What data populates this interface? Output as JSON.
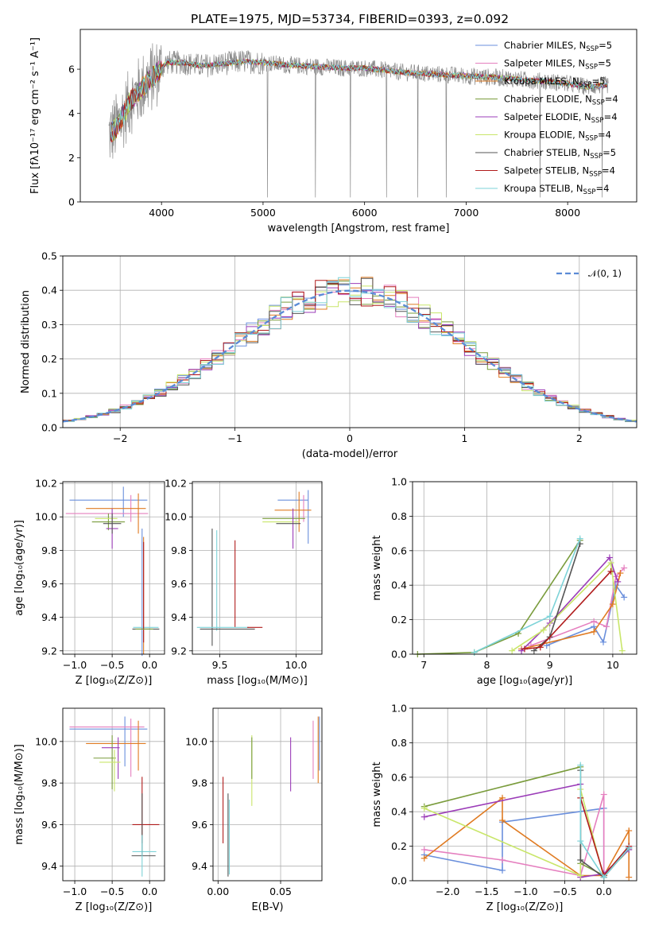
{
  "title": "PLATE=1975, MJD=53734, FIBERID=0393, z=0.092",
  "palette": [
    "#6a8fdc",
    "#e57fbf",
    "#e07b22",
    "#7a9c3c",
    "#9b3cb8",
    "#c9e66a",
    "#555555",
    "#b01b1b",
    "#7dd3d8"
  ],
  "chart_data": [
    {
      "id": "spectrum",
      "type": "line",
      "xlabel": "wavelength [Angstrom, rest frame]",
      "ylabel": "Flux [fλ10⁻¹⁷ erg cm⁻² s⁻¹ A⁻¹]",
      "xlim": [
        3200,
        8680
      ],
      "ylim": [
        0,
        7.8
      ],
      "xticks": [
        "4000",
        "5000",
        "6000",
        "7000",
        "8000"
      ],
      "yticks": [
        "0",
        "2",
        "4",
        "6"
      ],
      "grid": false,
      "legend_placement": "right",
      "series": [
        {
          "name": "Chabrier MILES, N_SSP=5"
        },
        {
          "name": "Salpeter MILES, N_SSP=5"
        },
        {
          "name": "Kroupa MILES, N_SSP=5"
        },
        {
          "name": "Chabrier ELODIE, N_SSP=4"
        },
        {
          "name": "Salpeter ELODIE, N_SSP=4"
        },
        {
          "name": "Kroupa ELODIE, N_SSP=4"
        },
        {
          "name": "Chabrier STELIB, N_SSP=5"
        },
        {
          "name": "Salpeter STELIB, N_SSP=4"
        },
        {
          "name": "Kroupa STELIB, N_SSP=4"
        }
      ],
      "continuum": {
        "x": [
          3480,
          3560,
          3700,
          3850,
          3950,
          4050,
          4200,
          4400,
          4600,
          4800,
          5000,
          5200,
          5400,
          5600,
          5800,
          6000,
          6200,
          6400,
          6600,
          6800,
          7000,
          7200,
          7400,
          7600,
          7800,
          8000,
          8200,
          8400
        ],
        "y": [
          3.0,
          3.4,
          4.6,
          5.4,
          5.8,
          6.3,
          6.3,
          6.15,
          6.25,
          6.35,
          6.3,
          6.2,
          6.15,
          6.1,
          6.05,
          6.05,
          5.95,
          5.85,
          5.8,
          5.75,
          5.7,
          5.65,
          5.6,
          5.5,
          5.45,
          5.35,
          5.2,
          5.3
        ]
      }
    },
    {
      "id": "residuals",
      "type": "histogram",
      "xlabel": "(data-model)/error",
      "ylabel": "Normed distribution",
      "xlim": [
        -2.5,
        2.5
      ],
      "ylim": [
        0,
        0.5
      ],
      "xticks": [
        "−2",
        "−1",
        "0",
        "1",
        "2"
      ],
      "yticks": [
        "0.0",
        "0.1",
        "0.2",
        "0.3",
        "0.4",
        "0.5"
      ],
      "grid": true,
      "legend": "𝒩(0, 1)",
      "legend_placement": "top-right",
      "bin_width": 0.1,
      "bin_start": -2.5,
      "reference_curve": "normal(0,1)"
    },
    {
      "id": "age-vs-Z",
      "type": "scatter",
      "xlabel": "Z [log₁₀(Z/Z⊙)]",
      "ylabel": "age  [log₁₀(age/yr)]",
      "xlim": [
        -1.16,
        0.2
      ],
      "ylim": [
        9.18,
        10.21
      ],
      "xticks": [
        "−1.0",
        "−0.5",
        "0.0"
      ],
      "yticks": [
        "9.2",
        "9.4",
        "9.6",
        "9.8",
        "10.0",
        "10.2"
      ],
      "grid": true
    },
    {
      "id": "age-vs-mass",
      "type": "scatter",
      "xlabel": "mass [log₁₀(M/M⊙)]",
      "ylabel": "",
      "xlim": [
        9.32,
        10.17
      ],
      "ylim": [
        9.18,
        10.21
      ],
      "xticks": [
        "9.5",
        "10.0"
      ],
      "yticks": [
        "9.2",
        "9.4",
        "9.6",
        "9.8",
        "10.0",
        "10.2"
      ],
      "grid": true
    },
    {
      "id": "mass-weight-vs-age",
      "type": "line",
      "xlabel": "age  [log₁₀(age/yr)]",
      "ylabel": "mass weight",
      "xlim": [
        6.82,
        10.38
      ],
      "ylim": [
        0,
        1.0
      ],
      "xticks": [
        "7",
        "8",
        "9",
        "10"
      ],
      "yticks": [
        "0.0",
        "0.2",
        "0.4",
        "0.6",
        "0.8",
        "1.0"
      ],
      "grid": true
    },
    {
      "id": "mass-vs-Z",
      "type": "scatter",
      "xlabel": "Z [log₁₀(Z/Z⊙)]",
      "ylabel": "mass [log₁₀(M/M⊙)]",
      "xlim": [
        -1.16,
        0.2
      ],
      "ylim": [
        9.33,
        10.16
      ],
      "xticks": [
        "−1.0",
        "−0.5",
        "0.0"
      ],
      "yticks": [
        "9.4",
        "9.6",
        "9.8",
        "10.0"
      ],
      "grid": true
    },
    {
      "id": "mass-vs-EBV",
      "type": "scatter",
      "xlabel": "E(B-V)",
      "ylabel": "",
      "xlim": [
        -0.004,
        0.083
      ],
      "ylim": [
        9.33,
        10.16
      ],
      "xticks": [
        "0.00",
        "0.05"
      ],
      "yticks": [
        "9.4",
        "9.6",
        "9.8",
        "10.0"
      ],
      "grid": true
    },
    {
      "id": "mass-weight-vs-Z",
      "type": "line",
      "xlabel": "Z [log₁₀(Z/Z⊙)]",
      "ylabel": "mass weight",
      "xlim": [
        -2.45,
        0.42
      ],
      "ylim": [
        0,
        1.0
      ],
      "xticks": [
        "−2.0",
        "−1.5",
        "−1.0",
        "−0.5",
        "0.0"
      ],
      "yticks": [
        "0.0",
        "0.2",
        "0.4",
        "0.6",
        "0.8",
        "1.0"
      ],
      "grid": true
    }
  ]
}
